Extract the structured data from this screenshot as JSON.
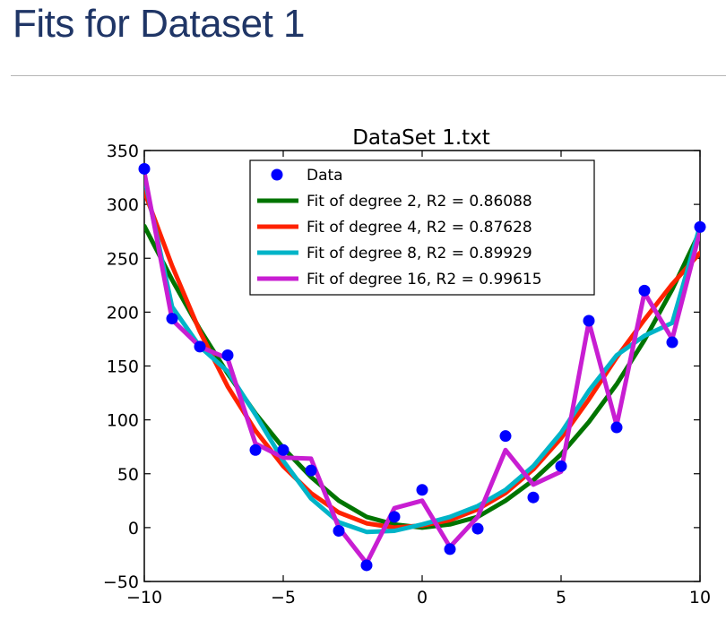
{
  "page": {
    "title": "Fits for Dataset 1"
  },
  "chart_data": {
    "type": "scatter",
    "title": "DataSet 1.txt",
    "xlabel": "",
    "ylabel": "",
    "xlim": [
      -10,
      10
    ],
    "ylim": [
      -50,
      350
    ],
    "xticks": [
      -10,
      -5,
      0,
      5,
      10
    ],
    "xtick_labels": [
      "−10",
      "−5",
      "0",
      "5",
      "10"
    ],
    "yticks": [
      -50,
      0,
      50,
      100,
      150,
      200,
      250,
      300,
      350
    ],
    "ytick_labels": [
      "−50",
      "0",
      "50",
      "100",
      "150",
      "200",
      "250",
      "300",
      "350"
    ],
    "grid": false,
    "legend_position": "top-center",
    "points": {
      "name": "Data",
      "color": "#0000ff",
      "x": [
        -10,
        -9,
        -8,
        -7,
        -6,
        -5,
        -4,
        -3,
        -2,
        -1,
        0,
        1,
        2,
        3,
        4,
        5,
        6,
        7,
        8,
        9,
        10
      ],
      "y": [
        333,
        194,
        168,
        160,
        72,
        72,
        53,
        -3,
        -35,
        10,
        35,
        -20,
        -1,
        85,
        28,
        57,
        192,
        93,
        220,
        172,
        279
      ]
    },
    "series": [
      {
        "name": "Fit of degree 2, R2 = 0.86088",
        "color": "#007400",
        "x": [
          -10,
          -9,
          -8,
          -7,
          -6,
          -5,
          -4,
          -3,
          -2,
          -1,
          0,
          1,
          2,
          3,
          4,
          5,
          6,
          7,
          8,
          9,
          10
        ],
        "y": [
          280,
          230,
          184,
          143,
          106,
          74,
          47,
          25,
          10,
          3,
          0,
          3,
          10,
          25,
          44,
          68,
          98,
          133,
          174,
          221,
          275
        ]
      },
      {
        "name": "Fit of degree 4, R2 = 0.87628",
        "color": "#ff2200",
        "x": [
          -10,
          -9,
          -8,
          -7,
          -6,
          -5,
          -4,
          -3,
          -2,
          -1,
          0,
          1,
          2,
          3,
          4,
          5,
          6,
          7,
          8,
          9,
          10
        ],
        "y": [
          312,
          243,
          182,
          131,
          90,
          57,
          32,
          14,
          4,
          0,
          2,
          7,
          17,
          32,
          54,
          83,
          119,
          158,
          193,
          226,
          255
        ]
      },
      {
        "name": "Fit of degree 8, R2 = 0.89929",
        "color": "#00b4c8",
        "x": [
          -10,
          -9,
          -8,
          -7,
          -6,
          -5,
          -4,
          -3,
          -2,
          -1,
          0,
          1,
          2,
          3,
          4,
          5,
          6,
          7,
          8,
          9,
          10
        ],
        "y": [
          325,
          205,
          168,
          145,
          105,
          62,
          27,
          5,
          -4,
          -3,
          3,
          10,
          20,
          35,
          57,
          88,
          127,
          160,
          178,
          190,
          280
        ]
      },
      {
        "name": "Fit of degree 16, R2 = 0.99615",
        "color": "#c81ed2",
        "x": [
          -10,
          -9,
          -8,
          -7,
          -6,
          -5,
          -4,
          -3,
          -2,
          -1,
          0,
          1,
          2,
          3,
          4,
          5,
          6,
          7,
          8,
          9,
          10
        ],
        "y": [
          330,
          193,
          168,
          157,
          78,
          65,
          64,
          0,
          -33,
          18,
          25,
          -18,
          10,
          72,
          40,
          52,
          191,
          95,
          218,
          175,
          275
        ]
      }
    ]
  }
}
